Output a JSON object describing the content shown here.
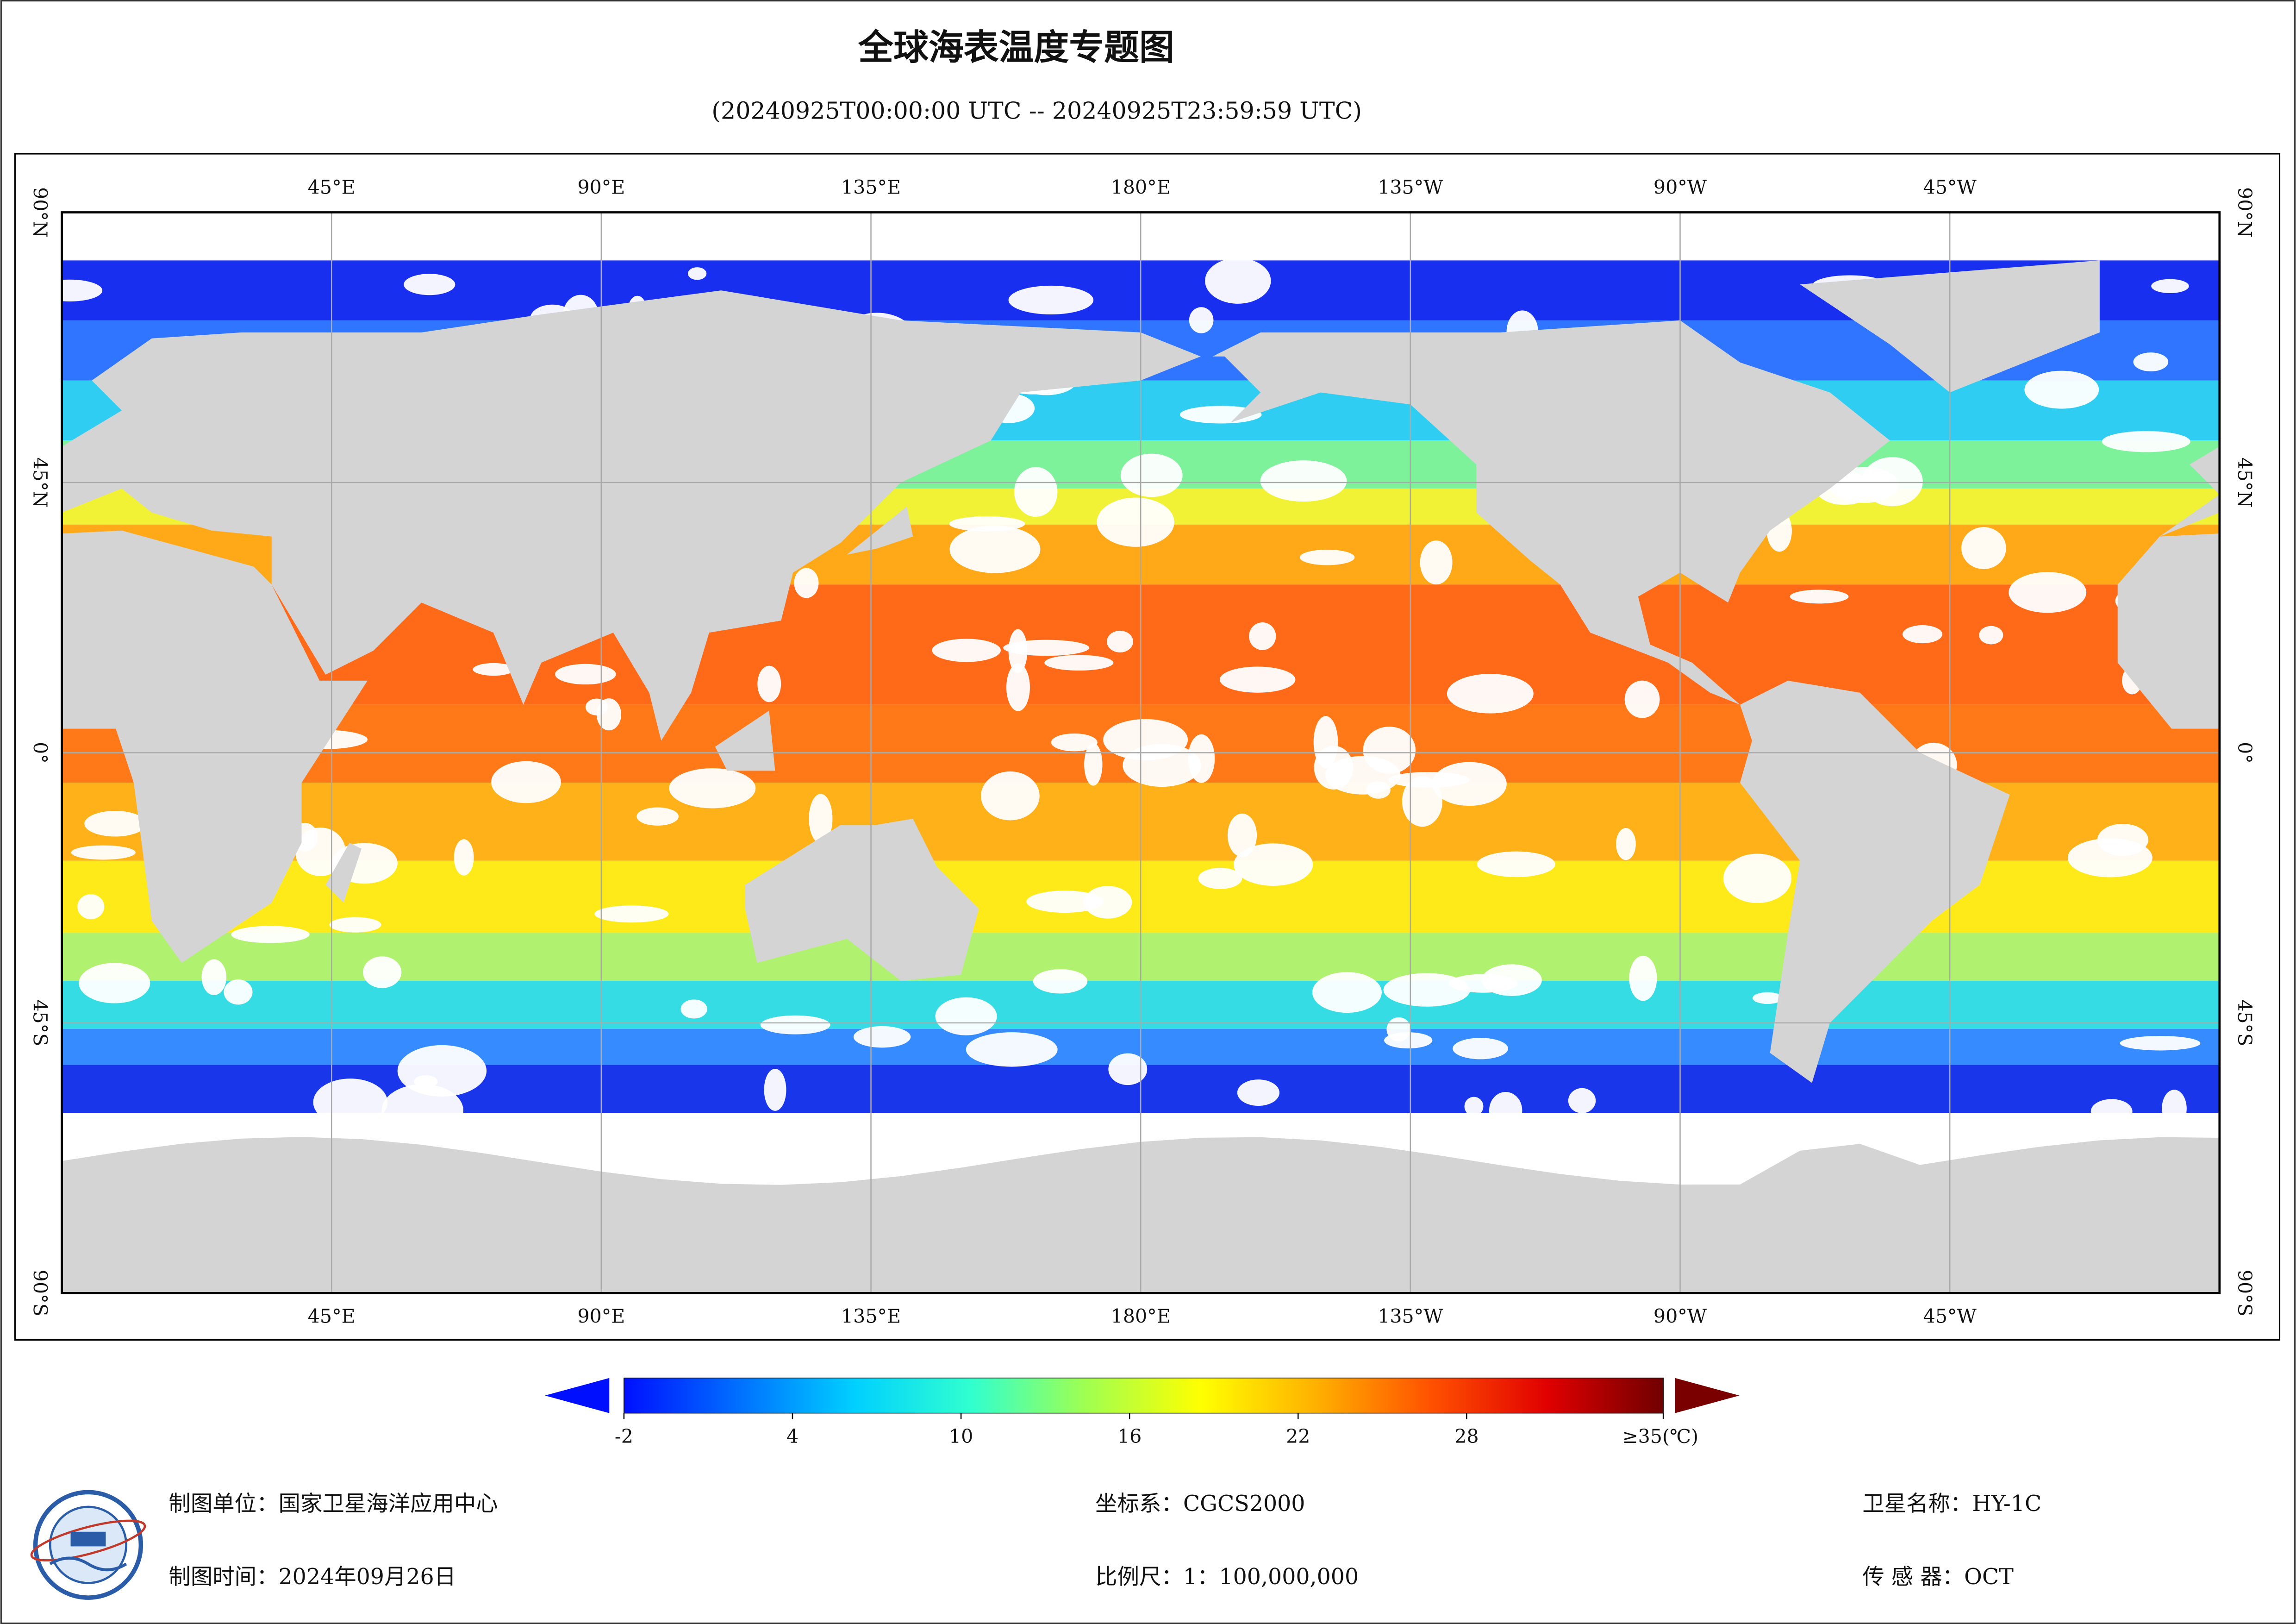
{
  "header": {
    "title": "全球海表温度专题图",
    "subtitle": "(20240925T00:00:00 UTC -- 20240925T23:59:59 UTC)"
  },
  "map": {
    "lon_labels": [
      "45°E",
      "90°E",
      "135°E",
      "180°E",
      "135°W",
      "90°W",
      "45°W"
    ],
    "lat_labels": [
      "90°N",
      "45°N",
      "0°",
      "45°S",
      "90°S"
    ]
  },
  "colorbar": {
    "lim": [
      -2,
      35
    ],
    "ticks": [
      -2,
      4,
      10,
      16,
      22,
      28,
      {
        "value": 35,
        "label": "≥35(℃)"
      }
    ],
    "colors": [
      "#0010ff",
      "#0070ff",
      "#00d0ff",
      "#30ffd0",
      "#a0ff50",
      "#ffff00",
      "#ffb000",
      "#ff5000",
      "#e00000",
      "#700000"
    ]
  },
  "footer": {
    "items": [
      "制图单位：国家卫星海洋应用中心",
      "坐标系：CGCS2000",
      "卫星名称：HY-1C",
      "制图时间：2024年09月26日",
      "比例尺：1：100,000,000",
      "传 感 器：OCT"
    ]
  }
}
